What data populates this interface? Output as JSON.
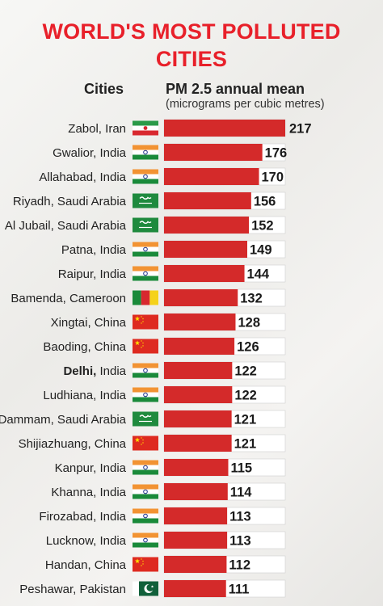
{
  "title": {
    "line1": "WORLD'S MOST POLLUTED",
    "line2": "CITIES"
  },
  "headers": {
    "cities": "Cities",
    "metric": "PM 2.5 annual mean",
    "unit": "(micrograms per cubic metres)"
  },
  "colors": {
    "title": "#e8202a",
    "bar": "#d42a2a",
    "bar_track": "#ffffff",
    "highlight_city": "Delhi"
  },
  "chart_data": {
    "type": "bar",
    "orientation": "horizontal",
    "title": "WORLD'S MOST POLLUTED CITIES",
    "xlabel": "PM 2.5 annual mean (micrograms per cubic metres)",
    "ylabel": "Cities",
    "xlim": [
      0,
      217
    ],
    "grid": false,
    "legend": "none",
    "rows": [
      {
        "city": "Zabol,",
        "country": "Iran",
        "flag": "iran",
        "value": 217
      },
      {
        "city": "Gwalior,",
        "country": "India",
        "flag": "india",
        "value": 176
      },
      {
        "city": "Allahabad,",
        "country": "India",
        "flag": "india",
        "value": 170
      },
      {
        "city": "Riyadh,",
        "country": "Saudi Arabia",
        "flag": "saudi",
        "value": 156
      },
      {
        "city": "Al Jubail,",
        "country": "Saudi Arabia",
        "flag": "saudi",
        "value": 152
      },
      {
        "city": "Patna,",
        "country": "India",
        "flag": "india",
        "value": 149
      },
      {
        "city": "Raipur,",
        "country": "India",
        "flag": "india",
        "value": 144
      },
      {
        "city": "Bamenda,",
        "country": "Cameroon",
        "flag": "cameroon",
        "value": 132
      },
      {
        "city": "Xingtai,",
        "country": "China",
        "flag": "china",
        "value": 128
      },
      {
        "city": "Baoding,",
        "country": "China",
        "flag": "china",
        "value": 126
      },
      {
        "city": "Delhi,",
        "country": "India",
        "flag": "india",
        "value": 122,
        "bold": true
      },
      {
        "city": "Ludhiana,",
        "country": "India",
        "flag": "india",
        "value": 122
      },
      {
        "city": "Dammam,",
        "country": "Saudi Arabia",
        "flag": "saudi",
        "value": 121
      },
      {
        "city": "Shijiazhuang,",
        "country": "China",
        "flag": "china",
        "value": 121
      },
      {
        "city": "Kanpur,",
        "country": "India",
        "flag": "india",
        "value": 115
      },
      {
        "city": "Khanna,",
        "country": "India",
        "flag": "india",
        "value": 114
      },
      {
        "city": "Firozabad,",
        "country": "India",
        "flag": "india",
        "value": 113
      },
      {
        "city": "Lucknow,",
        "country": "India",
        "flag": "india",
        "value": 113
      },
      {
        "city": "Handan,",
        "country": "China",
        "flag": "china",
        "value": 112
      },
      {
        "city": "Peshawar,",
        "country": "Pakistan",
        "flag": "pakistan",
        "value": 111
      }
    ]
  }
}
